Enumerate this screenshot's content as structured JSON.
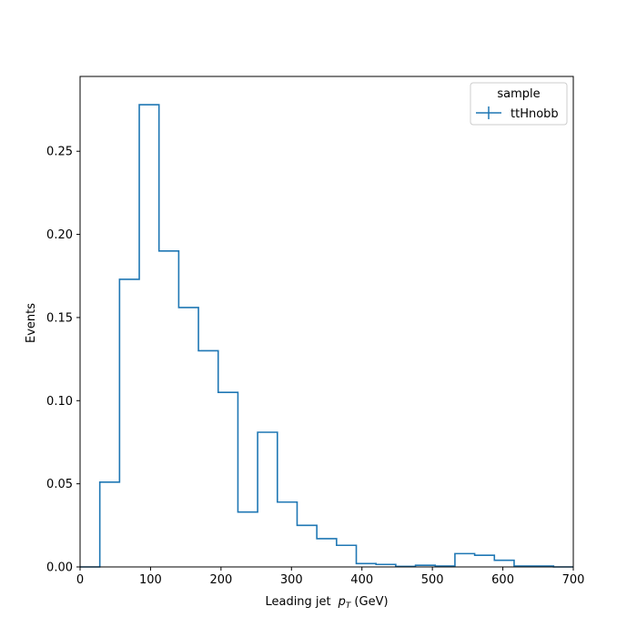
{
  "chart_data": {
    "type": "histogram",
    "xlabel_main": "Leading jet",
    "xlabel_symbol": "p",
    "xlabel_subscript": "T",
    "xlabel_unit": "(GeV)",
    "ylabel": "Events",
    "xlim": [
      0,
      700
    ],
    "ylim": [
      0,
      0.295
    ],
    "xticks": [
      0,
      100,
      200,
      300,
      400,
      500,
      600,
      700
    ],
    "yticks": [
      0.0,
      0.05,
      0.1,
      0.15,
      0.2,
      0.25
    ],
    "ytick_labels": [
      "0.00",
      "0.05",
      "0.10",
      "0.15",
      "0.20",
      "0.25"
    ],
    "bin_edges": [
      0,
      28,
      56,
      84,
      112,
      140,
      168,
      196,
      224,
      252,
      280,
      308,
      336,
      364,
      392,
      420,
      448,
      476,
      504,
      532,
      560,
      588,
      616,
      644,
      672,
      700
    ],
    "series": [
      {
        "name": "ttHnobb",
        "color": "#1f77b4",
        "values": [
          0.0,
          0.051,
          0.173,
          0.278,
          0.19,
          0.156,
          0.13,
          0.105,
          0.033,
          0.081,
          0.039,
          0.025,
          0.017,
          0.013,
          0.002,
          0.0015,
          0.0003,
          0.001,
          0.0005,
          0.008,
          0.007,
          0.004,
          0.0005,
          0.0005,
          0.0
        ]
      }
    ],
    "legend": {
      "title": "sample",
      "placement": "top-right"
    },
    "grid": false
  }
}
